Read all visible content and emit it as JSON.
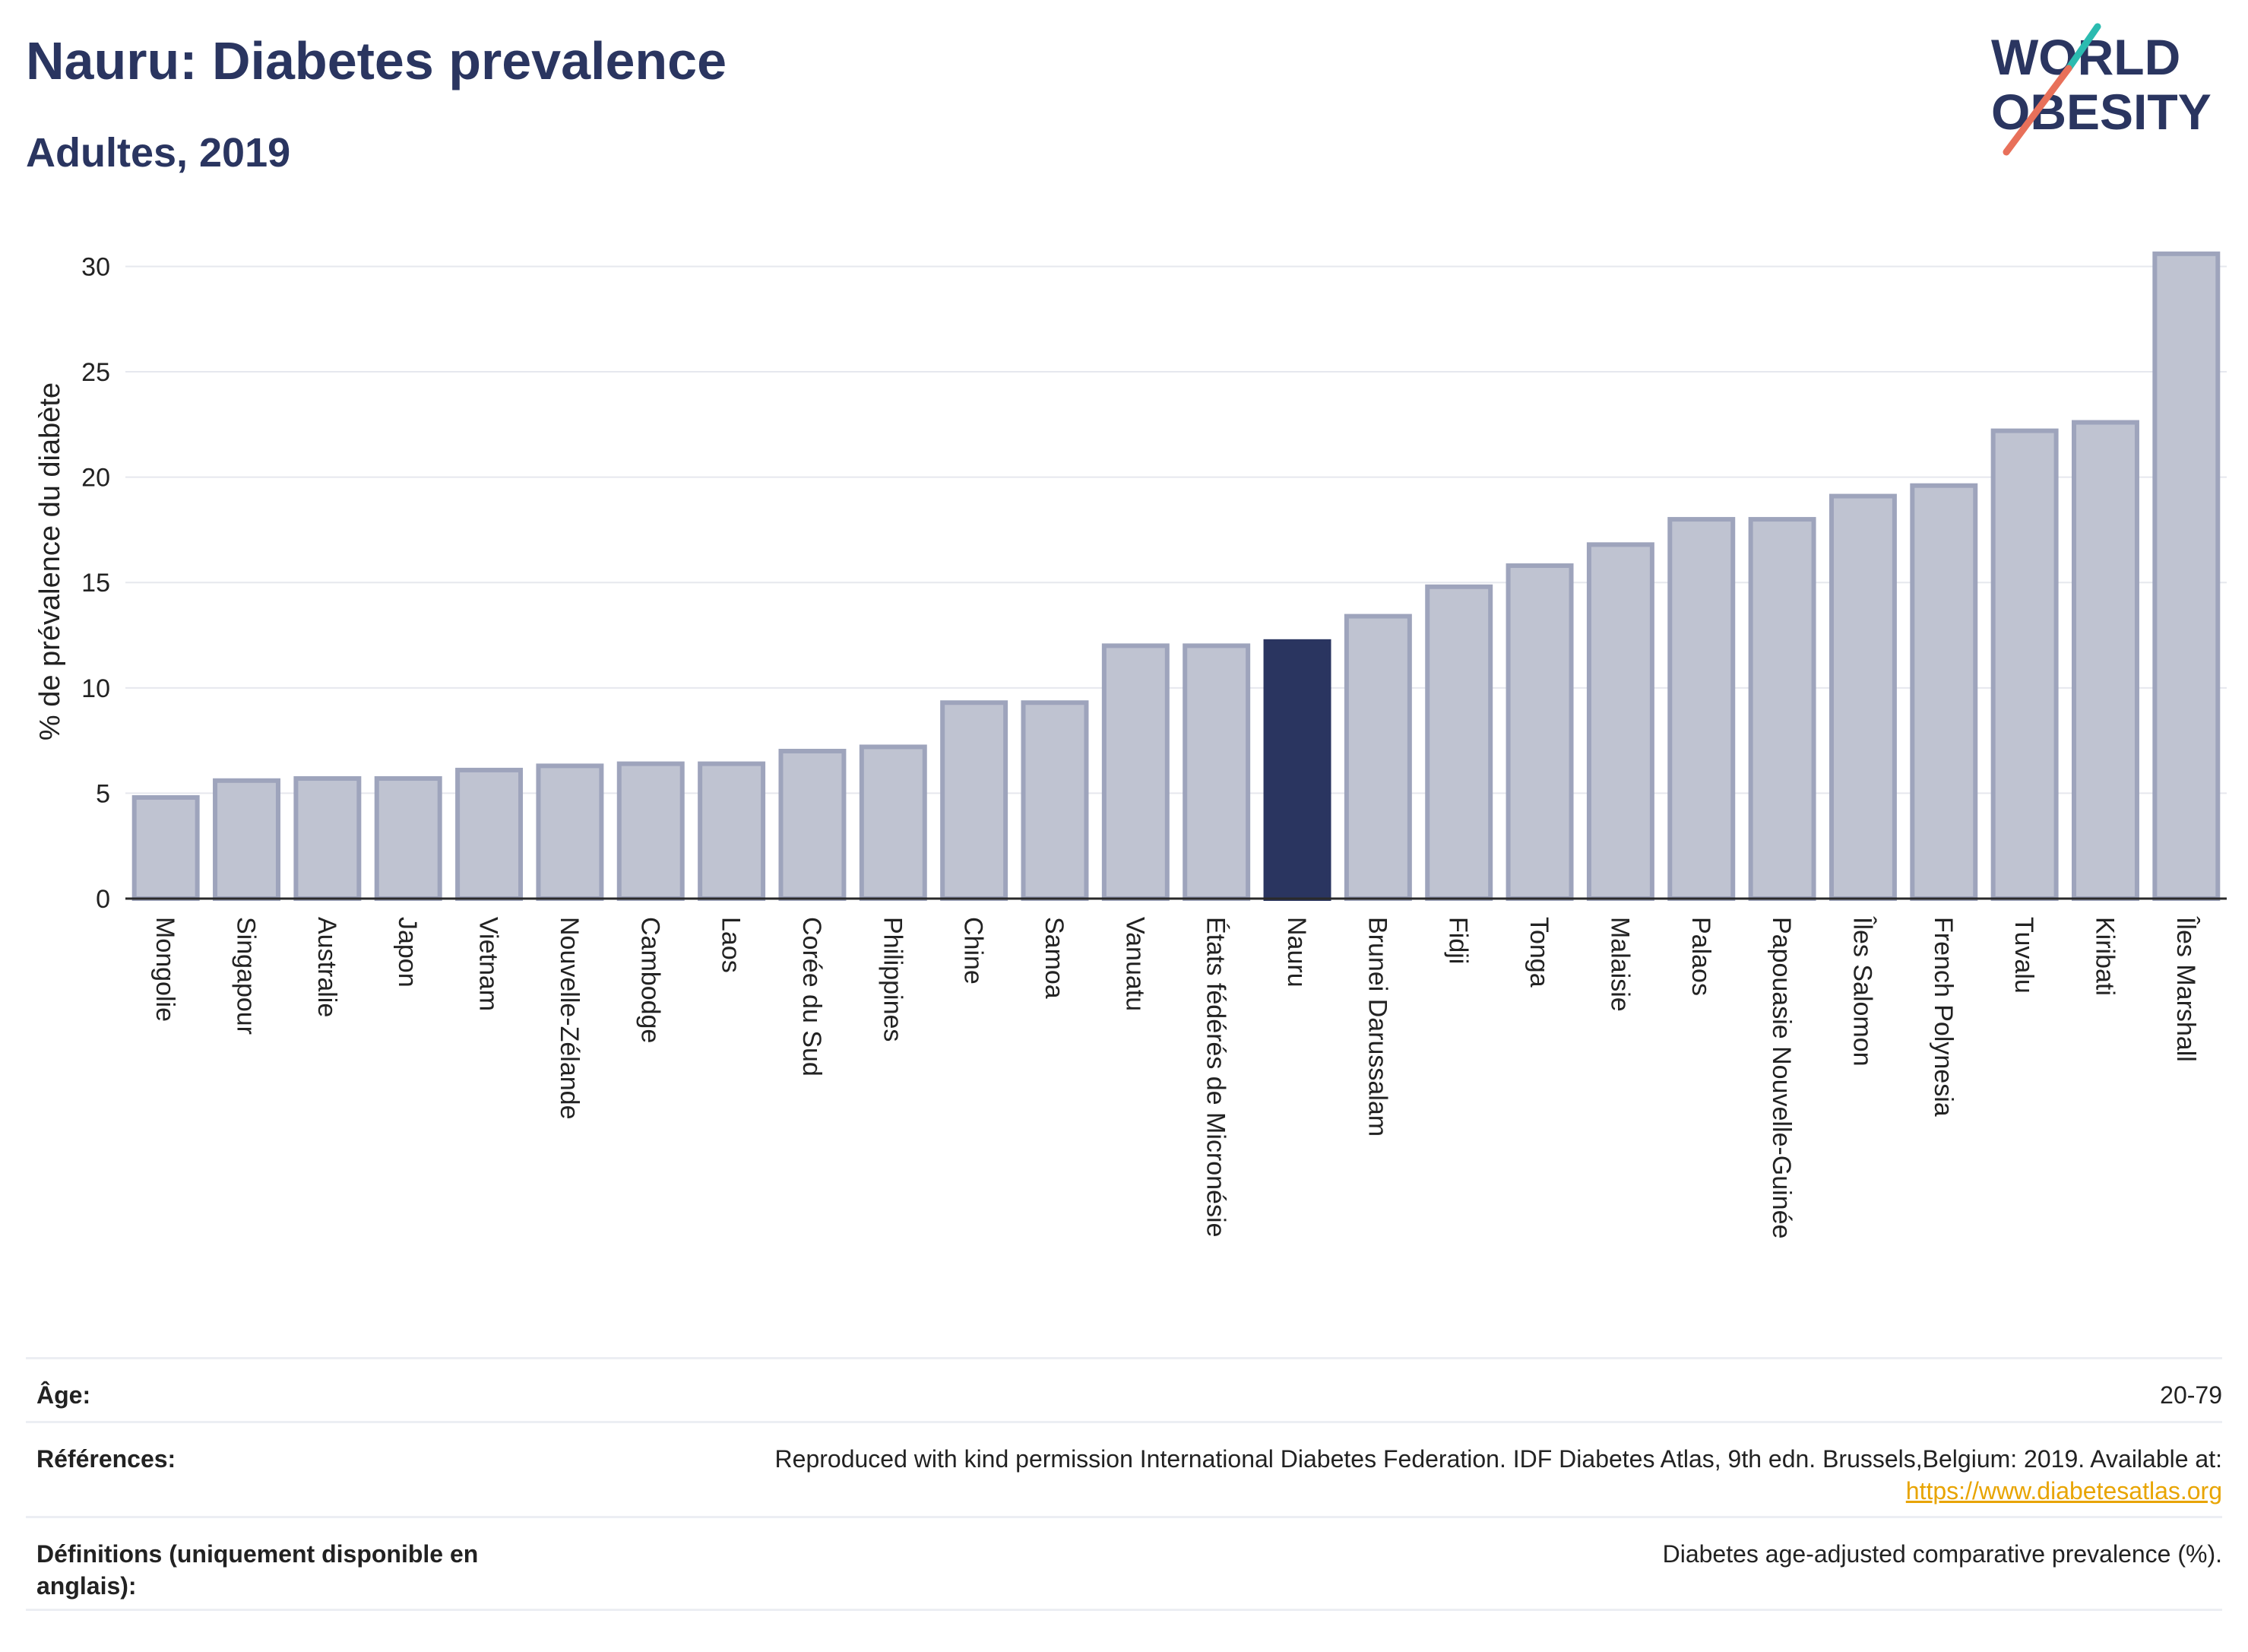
{
  "header": {
    "title": "Nauru: Diabetes prevalence",
    "subtitle": "Adultes, 2019",
    "logo_line1": "WORLD",
    "logo_line2": "OBESITY"
  },
  "colors": {
    "bar": "#bfc3d1",
    "bar_border": "#9ea4bc",
    "highlight": "#2a3560",
    "grid": "#e6e8ee",
    "axis": "#2a2a2a",
    "logo_teal": "#2bbbb0",
    "logo_coral": "#e8705a"
  },
  "chart_data": {
    "type": "bar",
    "ylabel": "% de prévalence du diabète",
    "ylim": [
      0,
      32
    ],
    "yticks": [
      0,
      5,
      10,
      15,
      20,
      25,
      30
    ],
    "grid": true,
    "highlight": "Nauru",
    "categories": [
      "Mongolie",
      "Singapour",
      "Australie",
      "Japon",
      "Vietnam",
      "Nouvelle-Zélande",
      "Cambodge",
      "Laos",
      "Corée du Sud",
      "Philippines",
      "Chine",
      "Samoa",
      "Vanuatu",
      "États fédérés de Micronésie",
      "Nauru",
      "Brunei Darussalam",
      "Fidji",
      "Tonga",
      "Malaisie",
      "Palaos",
      "Papouasie Nouvelle-Guinée",
      "Îles Salomon",
      "French Polynesia",
      "Tuvalu",
      "Kiribati",
      "Îles Marshall"
    ],
    "values": [
      4.8,
      5.6,
      5.7,
      5.7,
      6.1,
      6.3,
      6.4,
      6.4,
      7.0,
      7.2,
      9.3,
      9.3,
      12.0,
      12.0,
      12.2,
      13.4,
      14.8,
      15.8,
      16.8,
      18.0,
      18.0,
      19.1,
      19.6,
      22.2,
      22.6,
      30.6
    ]
  },
  "meta": [
    {
      "key": "Âge:",
      "value": "20-79"
    },
    {
      "key": "Références:",
      "value": "Reproduced with kind permission International Diabetes Federation. IDF Diabetes Atlas, 9th edn. Brussels,Belgium: 2019. Available at:",
      "link": "https://www.diabetesatlas.org"
    },
    {
      "key": "Définitions (uniquement disponible en anglais):",
      "value": "Diabetes age-adjusted comparative prevalence (%)."
    }
  ]
}
